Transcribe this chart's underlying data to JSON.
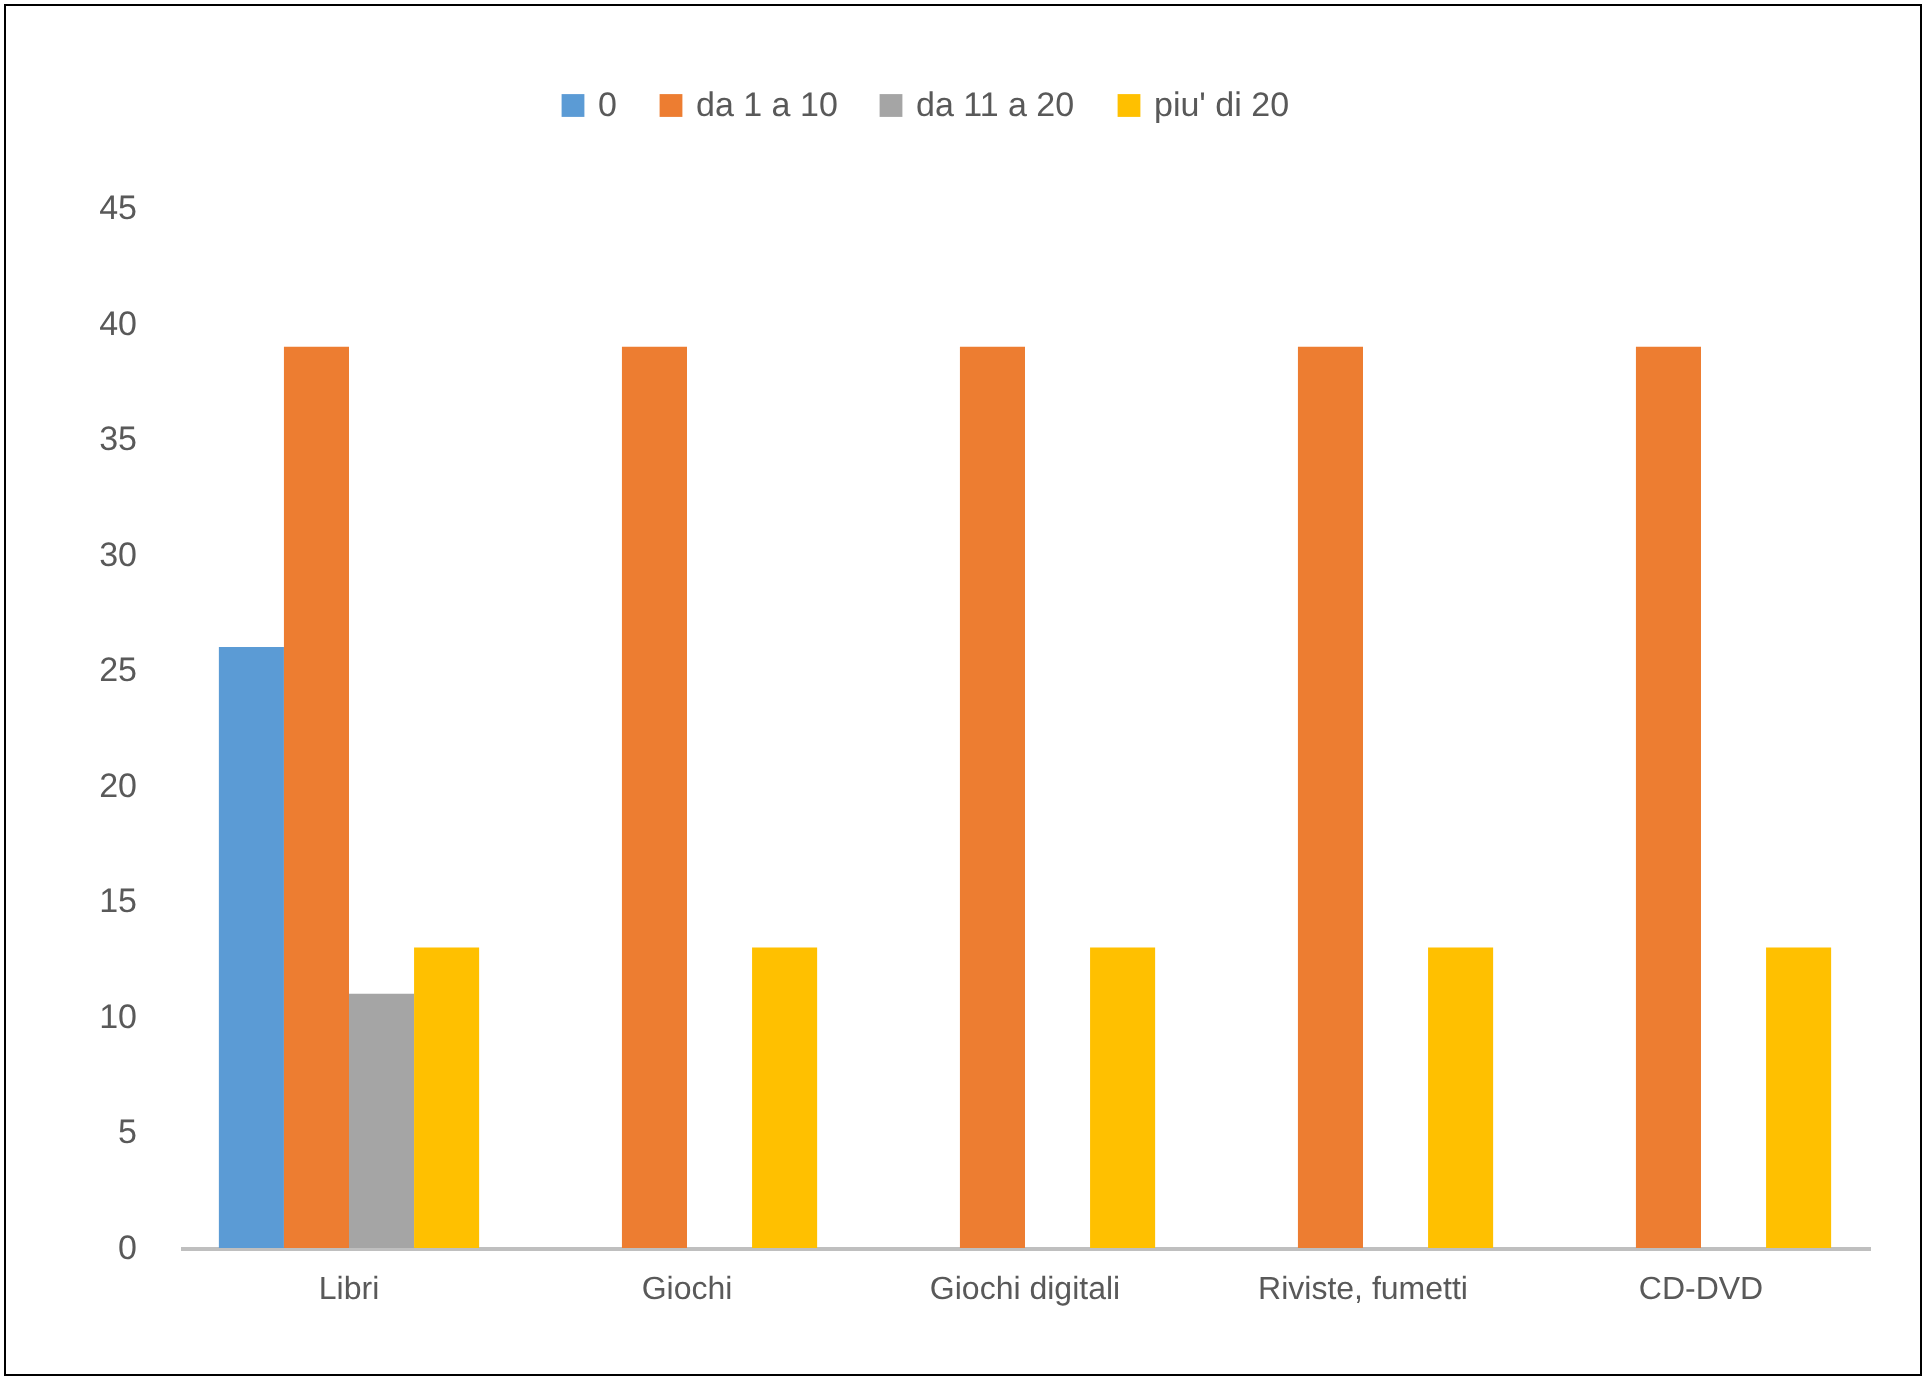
{
  "chart_data": {
    "type": "bar",
    "categories": [
      "Libri",
      "Giochi",
      "Giochi digitali",
      "Riviste, fumetti",
      "CD-DVD"
    ],
    "series": [
      {
        "name": "0",
        "color": "#5b9bd5",
        "values": [
          26,
          null,
          null,
          null,
          null
        ]
      },
      {
        "name": "da 1 a 10",
        "color": "#ed7d31",
        "values": [
          39,
          39,
          39,
          39,
          39
        ]
      },
      {
        "name": "da 11 a 20",
        "color": "#a5a5a5",
        "values": [
          11,
          null,
          null,
          null,
          null
        ]
      },
      {
        "name": "piu' di 20",
        "color": "#ffc000",
        "values": [
          13,
          13,
          13,
          13,
          13
        ]
      }
    ],
    "ylim": [
      0,
      45
    ],
    "yticks": [
      0,
      5,
      10,
      15,
      20,
      25,
      30,
      35,
      40,
      45
    ],
    "grid": false,
    "legend": "top"
  }
}
